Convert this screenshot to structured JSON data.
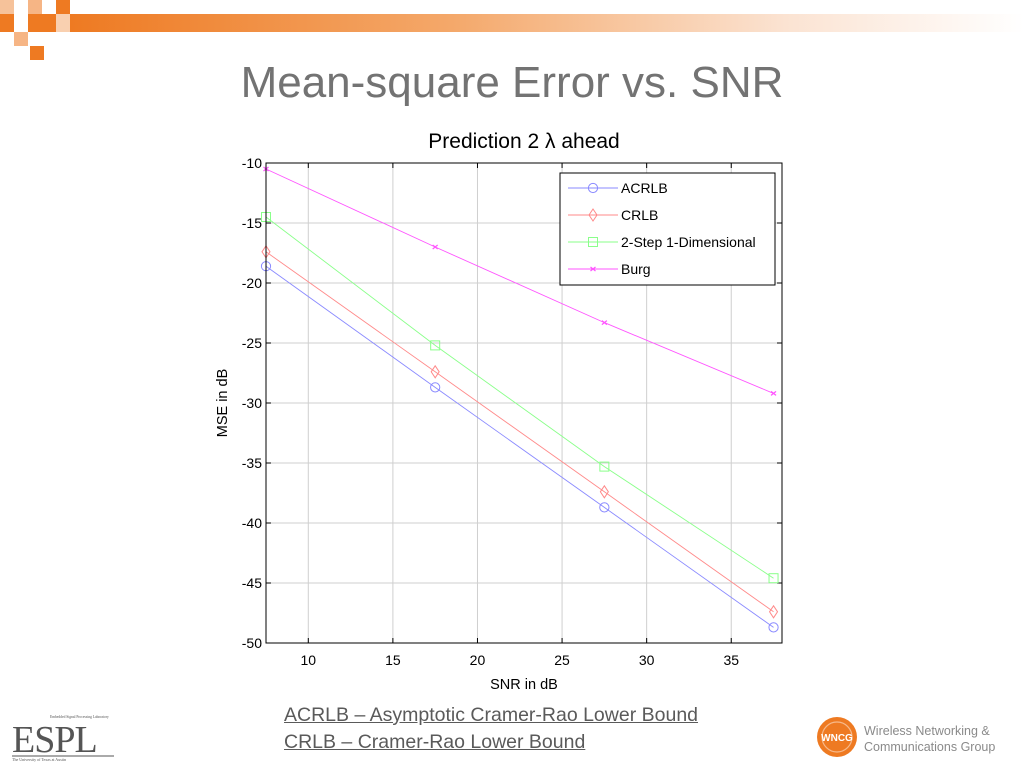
{
  "slide": {
    "title": "Mean-square Error vs. SNR",
    "footnotes": [
      "ACRLB – Asymptotic Cramer-Rao Lower Bound",
      "CRLB – Cramer-Rao Lower Bound"
    ],
    "accent_color": "#ee7a22"
  },
  "logos": {
    "espl": {
      "text": "ESPL",
      "tagline": "Embedded Signal Processing Laboratory",
      "subtitle": "The University of Texas at Austin"
    },
    "wncg": {
      "badge": "WNCG",
      "line1": "Wireless Networking &",
      "line2": "Communications Group"
    }
  },
  "chart_data": {
    "type": "line",
    "title": "Prediction 2 λ ahead",
    "xlabel": "SNR in dB",
    "ylabel": "MSE in dB",
    "xlim": [
      7.5,
      38
    ],
    "ylim": [
      -50,
      -10
    ],
    "xticks": [
      10,
      15,
      20,
      25,
      30,
      35
    ],
    "yticks": [
      -10,
      -15,
      -20,
      -25,
      -30,
      -35,
      -40,
      -45,
      -50
    ],
    "grid": true,
    "legend_position": "top-right",
    "series": [
      {
        "name": "ACRLB",
        "color": "#8a8aff",
        "marker": "circle",
        "x": [
          7.5,
          17.5,
          27.5,
          37.5
        ],
        "y": [
          -18.6,
          -28.7,
          -38.7,
          -48.7
        ]
      },
      {
        "name": "CRLB",
        "color": "#ff8a8a",
        "marker": "diamond",
        "x": [
          7.5,
          17.5,
          27.5,
          37.5
        ],
        "y": [
          -17.4,
          -27.4,
          -37.4,
          -47.4
        ]
      },
      {
        "name": "2-Step 1-Dimensional",
        "color": "#8aff8a",
        "marker": "square",
        "x": [
          7.5,
          17.5,
          27.5,
          37.5
        ],
        "y": [
          -14.5,
          -25.2,
          -35.3,
          -44.6
        ]
      },
      {
        "name": "Burg",
        "color": "#ff55ff",
        "marker": "x",
        "x": [
          7.5,
          17.5,
          27.5,
          37.5
        ],
        "y": [
          -10.5,
          -17.0,
          -23.3,
          -29.2
        ]
      }
    ]
  }
}
